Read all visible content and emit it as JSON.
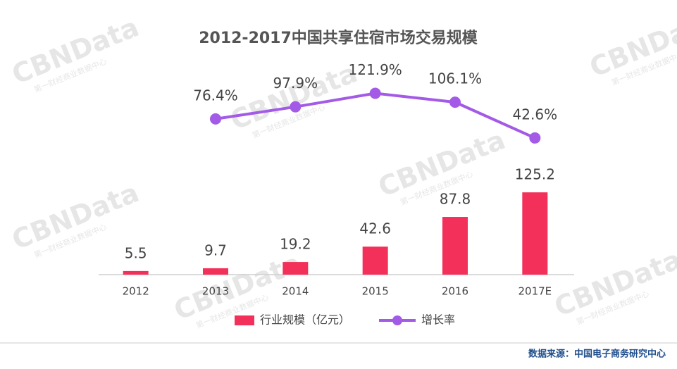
{
  "chart_data": {
    "type": "bar_line",
    "title": "2012-2017中国共享住宿市场交易规模",
    "categories": [
      "2012",
      "2013",
      "2014",
      "2015",
      "2016",
      "2017E"
    ],
    "series": [
      {
        "name": "行业规模（亿元）",
        "type": "bar",
        "color": "#f3305a",
        "values": [
          5.5,
          9.7,
          19.2,
          42.6,
          87.8,
          125.2
        ]
      },
      {
        "name": "增长率",
        "type": "line",
        "axis": "y2",
        "color": "#a35ae6",
        "values": [
          null,
          76.4,
          97.9,
          121.9,
          106.1,
          42.6
        ],
        "value_labels": [
          null,
          "76.4%",
          "97.9%",
          "121.9%",
          "106.1%",
          "42.6%"
        ]
      }
    ],
    "ylim": [
      0,
      300
    ],
    "y2lim": [
      -200,
      150
    ],
    "legend": "bottom",
    "source": "数据来源：中国电子商务研究中心",
    "watermark": "CBNData",
    "watermark_sub": "第一财经商业数据中心"
  }
}
